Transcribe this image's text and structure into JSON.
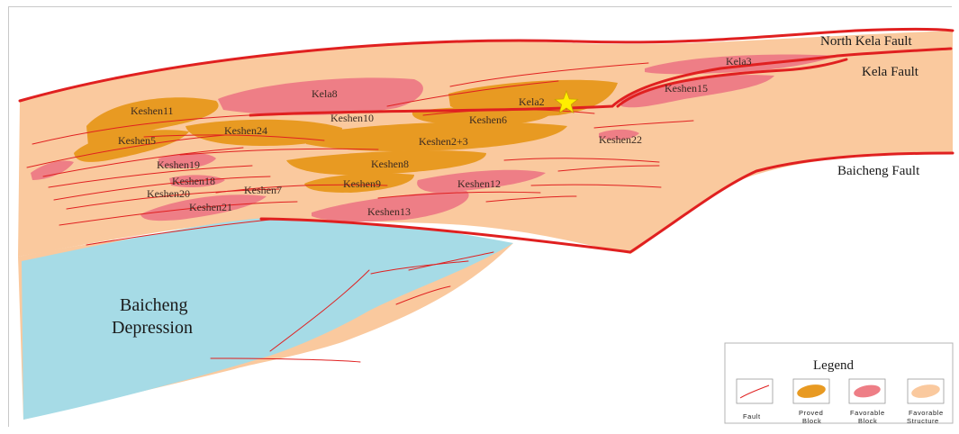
{
  "colors": {
    "fault": "#e02020",
    "proved_block": "#e89a22",
    "favorable_block": "#ee7e86",
    "favorable_structure": "#fac99e",
    "depression": "#a6dbe6"
  },
  "faults": {
    "north_kela": "North Kela Fault",
    "kela": "Kela Fault",
    "baicheng": "Baicheng Fault"
  },
  "depression": {
    "line1": "Baicheng",
    "line2": "Depression"
  },
  "blocks": {
    "kela3": "Kela3",
    "kela8": "Kela8",
    "kela2": "Kela2",
    "keshen15": "Keshen15",
    "keshen11": "Keshen11",
    "keshen10": "Keshen10",
    "keshen6": "Keshen6",
    "keshen5": "Keshen5",
    "keshen24": "Keshen24",
    "keshen2_3": "Keshen2+3",
    "keshen22": "Keshen22",
    "keshen19": "Keshen19",
    "keshen8": "Keshen8",
    "keshen18": "Keshen18",
    "keshen9": "Keshen9",
    "keshen12": "Keshen12",
    "keshen20": "Keshen20",
    "keshen7": "Keshen7",
    "keshen21": "Keshen21",
    "keshen13": "Keshen13"
  },
  "legend": {
    "title": "Legend",
    "fault": "Fault",
    "proved_line1": "Proved",
    "proved_line2": "Block",
    "favorable_block_line1": "Favorable",
    "favorable_block_line2": "Block",
    "favorable_structure_line1": "Favorable",
    "favorable_structure_line2": "Structure"
  }
}
